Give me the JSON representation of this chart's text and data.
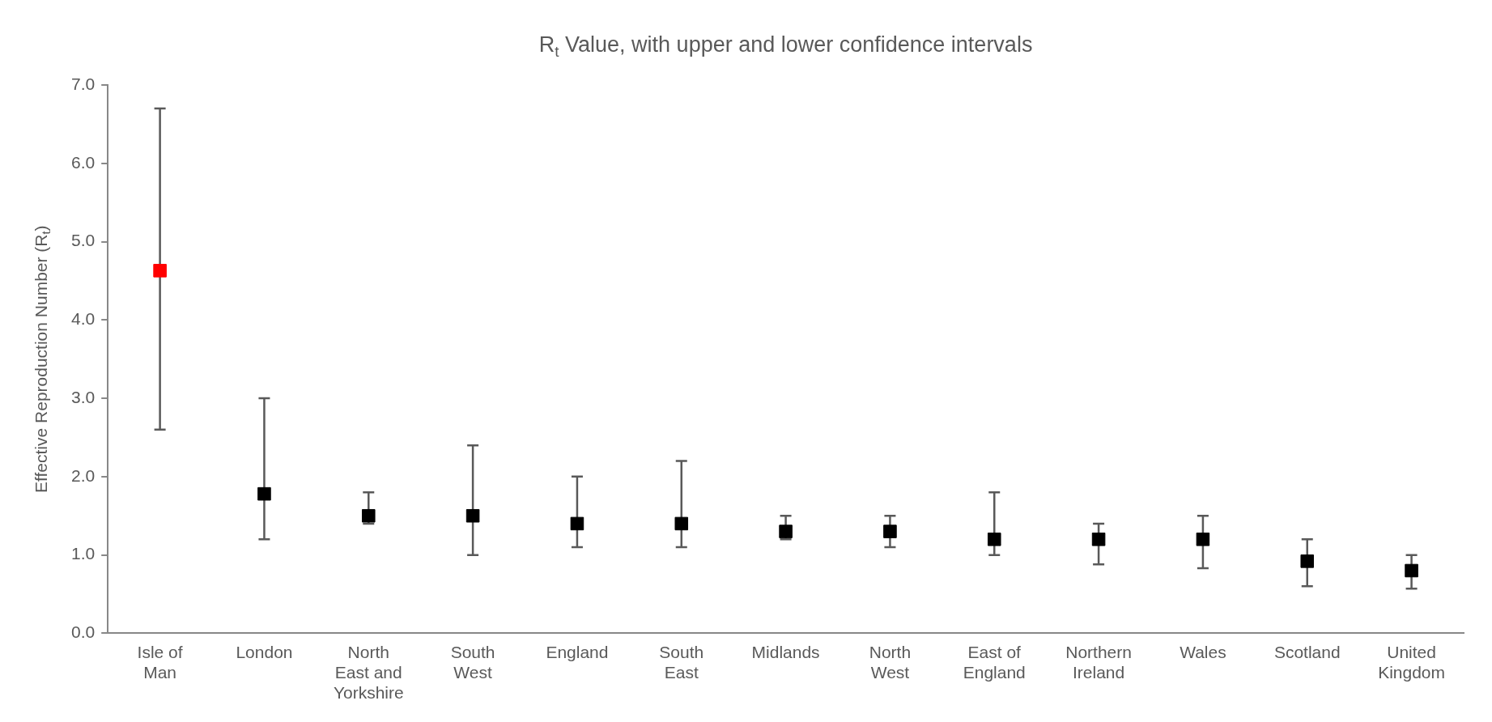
{
  "chart_data": {
    "type": "scatter",
    "title": "R$_{t}$ Value, with upper and lower confidence intervals",
    "ylabel": "Effective Reproduction Number (R$_{t}$)",
    "categories": [
      "Isle of Man",
      "London",
      "North East and Yorkshire",
      "South West",
      "England",
      "South East",
      "Midlands",
      "North West",
      "East of England",
      "Northern Ireland",
      "Wales",
      "Scotland",
      "United Kingdom"
    ],
    "values": [
      4.63,
      1.78,
      1.5,
      1.5,
      1.4,
      1.4,
      1.3,
      1.3,
      1.2,
      1.2,
      1.2,
      0.92,
      0.8
    ],
    "colors": [
      "#ff0000",
      "#000000",
      "#000000",
      "#000000",
      "#000000",
      "#000000",
      "#000000",
      "#000000",
      "#000000",
      "#000000",
      "#000000",
      "#000000",
      "#000000"
    ],
    "errors": [
      [
        2.6,
        6.7
      ],
      [
        1.2,
        3.0
      ],
      [
        1.4,
        1.8
      ],
      [
        1.0,
        2.4
      ],
      [
        1.1,
        2.0
      ],
      [
        1.1,
        2.2
      ],
      [
        1.2,
        1.5
      ],
      [
        1.1,
        1.5
      ],
      [
        1.0,
        1.8
      ],
      [
        0.88,
        1.4
      ],
      [
        0.83,
        1.5
      ],
      [
        0.6,
        1.2
      ],
      [
        0.57,
        1.0
      ]
    ],
    "ylim": [
      0,
      7
    ],
    "yticks": [
      {
        "value": 0,
        "label": "0.0"
      },
      {
        "value": 1,
        "label": "1.0"
      },
      {
        "value": 2,
        "label": "2.0"
      },
      {
        "value": 3,
        "label": "3.0"
      },
      {
        "value": 4,
        "label": "4.0"
      },
      {
        "value": 5,
        "label": "5.0"
      },
      {
        "value": 6,
        "label": "6.0"
      },
      {
        "value": 7,
        "label": "7.0"
      }
    ],
    "marker": "square",
    "grid": false,
    "legend": false
  }
}
